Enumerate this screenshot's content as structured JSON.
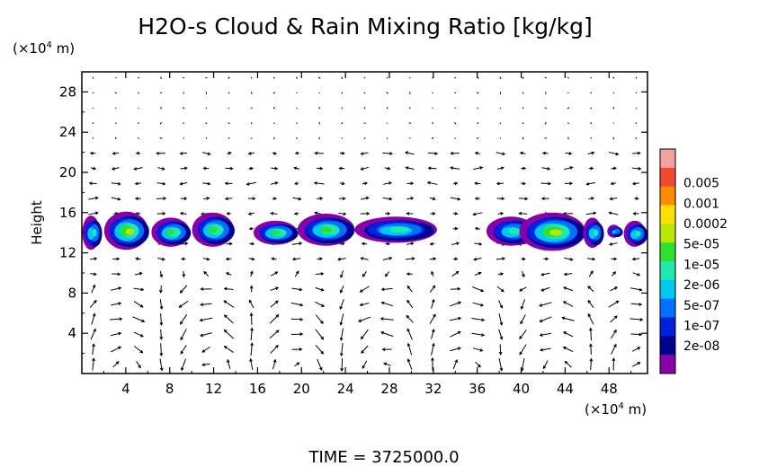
{
  "chart_data": {
    "type": "heatmap",
    "title": "H2O-s Cloud & Rain Mixing Ratio [kg/kg]",
    "ylabel": "Height",
    "y_unit": "(×10",
    "y_unit_exp": "4",
    "y_unit_tail": " m)",
    "x_unit": "(×10",
    "x_unit_exp": "4",
    "x_unit_tail": " m)",
    "xlim": [
      0,
      51.5
    ],
    "ylim": [
      0,
      30
    ],
    "x_ticks": [
      4,
      8,
      12,
      16,
      20,
      24,
      28,
      32,
      36,
      40,
      44,
      48
    ],
    "y_ticks": [
      4,
      8,
      12,
      16,
      20,
      24,
      28
    ],
    "colorbar": {
      "labels": [
        "0.005",
        "0.001",
        "0.0002",
        "5e-05",
        "1e-05",
        "2e-06",
        "5e-07",
        "1e-07",
        "2e-08"
      ],
      "colors": [
        "#f7a0a0",
        "#f04a30",
        "#ff8c00",
        "#ffe000",
        "#b8e800",
        "#30e030",
        "#20e8b0",
        "#00c8f0",
        "#0070ff",
        "#0020e0",
        "#000090",
        "#8800aa"
      ]
    },
    "clouds": [
      {
        "x0": 0.2,
        "x1": 1.8,
        "z0": 12.3,
        "z1": 15.7,
        "level": 7
      },
      {
        "x0": 2.2,
        "x1": 6.2,
        "z0": 12.3,
        "z1": 16.1,
        "level": 5
      },
      {
        "x0": 6.5,
        "x1": 10.0,
        "z0": 12.6,
        "z1": 15.5,
        "level": 6
      },
      {
        "x0": 10.2,
        "x1": 14.0,
        "z0": 12.6,
        "z1": 16.0,
        "level": 6
      },
      {
        "x0": 15.8,
        "x1": 19.8,
        "z0": 12.8,
        "z1": 15.2,
        "level": 6
      },
      {
        "x0": 19.8,
        "x1": 25.0,
        "z0": 12.7,
        "z1": 15.9,
        "level": 6
      },
      {
        "x0": 25.0,
        "x1": 32.5,
        "z0": 13.0,
        "z1": 15.6,
        "level": 7
      },
      {
        "x0": 37.0,
        "x1": 41.5,
        "z0": 12.7,
        "z1": 15.6,
        "level": 7
      },
      {
        "x0": 40.0,
        "x1": 46.0,
        "z0": 12.2,
        "z1": 16.0,
        "level": 5
      },
      {
        "x0": 45.8,
        "x1": 47.5,
        "z0": 12.5,
        "z1": 15.5,
        "level": 7
      },
      {
        "x0": 48.0,
        "x1": 49.2,
        "z0": 13.5,
        "z1": 14.8,
        "level": 8
      },
      {
        "x0": 49.5,
        "x1": 51.5,
        "z0": 12.6,
        "z1": 15.2,
        "level": 7
      }
    ],
    "vectors_note": "",
    "time_label": "TIME  =  3725000.0"
  }
}
